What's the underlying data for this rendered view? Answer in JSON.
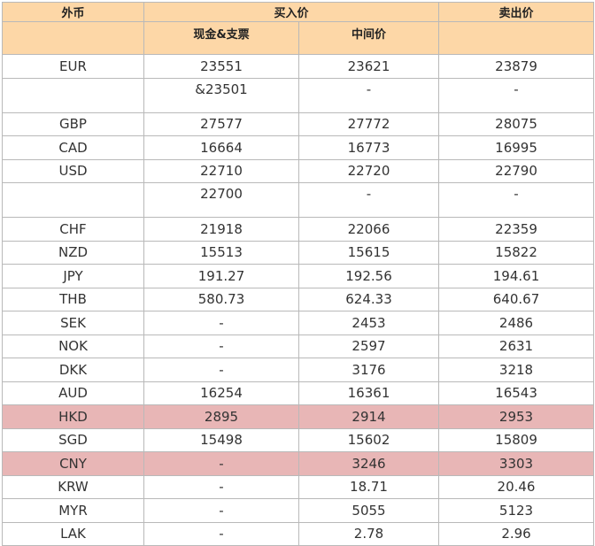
{
  "header": {
    "currency": "外币",
    "buy": "买入价",
    "sell": "卖出价",
    "cash_cheque": "现金&支票",
    "middle": "中间价"
  },
  "rows": [
    {
      "code": "EUR",
      "buy": "23551",
      "mid": "23621",
      "sell": "23879",
      "tall": false,
      "highlight": false
    },
    {
      "code": "",
      "buy": "&23501",
      "mid": "-",
      "sell": "-",
      "tall": true,
      "highlight": false
    },
    {
      "code": "GBP",
      "buy": "27577",
      "mid": "27772",
      "sell": "28075",
      "tall": false,
      "highlight": false
    },
    {
      "code": "CAD",
      "buy": "16664",
      "mid": "16773",
      "sell": "16995",
      "tall": false,
      "highlight": false
    },
    {
      "code": "USD",
      "buy": "22710",
      "mid": "22720",
      "sell": "22790",
      "tall": false,
      "highlight": false
    },
    {
      "code": "",
      "buy": "22700",
      "mid": "-",
      "sell": "-",
      "tall": true,
      "highlight": false
    },
    {
      "code": "CHF",
      "buy": "21918",
      "mid": "22066",
      "sell": "22359",
      "tall": false,
      "highlight": false
    },
    {
      "code": "NZD",
      "buy": "15513",
      "mid": "15615",
      "sell": "15822",
      "tall": false,
      "highlight": false
    },
    {
      "code": "JPY",
      "buy": "191.27",
      "mid": "192.56",
      "sell": "194.61",
      "tall": false,
      "highlight": false
    },
    {
      "code": "THB",
      "buy": "580.73",
      "mid": "624.33",
      "sell": "640.67",
      "tall": false,
      "highlight": false
    },
    {
      "code": "SEK",
      "buy": "-",
      "mid": "2453",
      "sell": "2486",
      "tall": false,
      "highlight": false
    },
    {
      "code": "NOK",
      "buy": "-",
      "mid": "2597",
      "sell": "2631",
      "tall": false,
      "highlight": false
    },
    {
      "code": "DKK",
      "buy": "-",
      "mid": "3176",
      "sell": "3218",
      "tall": false,
      "highlight": false
    },
    {
      "code": "AUD",
      "buy": "16254",
      "mid": "16361",
      "sell": "16543",
      "tall": false,
      "highlight": false
    },
    {
      "code": "HKD",
      "buy": "2895",
      "mid": "2914",
      "sell": "2953",
      "tall": false,
      "highlight": true
    },
    {
      "code": "SGD",
      "buy": "15498",
      "mid": "15602",
      "sell": "15809",
      "tall": false,
      "highlight": false
    },
    {
      "code": "CNY",
      "buy": "-",
      "mid": "3246",
      "sell": "3303",
      "tall": false,
      "highlight": true
    },
    {
      "code": "KRW",
      "buy": "-",
      "mid": "18.71",
      "sell": "20.46",
      "tall": false,
      "highlight": false
    },
    {
      "code": "MYR",
      "buy": "-",
      "mid": "5055",
      "sell": "5123",
      "tall": false,
      "highlight": false
    },
    {
      "code": "LAK",
      "buy": "-",
      "mid": "2.78",
      "sell": "2.96",
      "tall": false,
      "highlight": false
    }
  ],
  "colors": {
    "header_bg": "#fdd7a7",
    "highlight_bg": "#e8b6b6",
    "border": "#b9b9b9"
  }
}
